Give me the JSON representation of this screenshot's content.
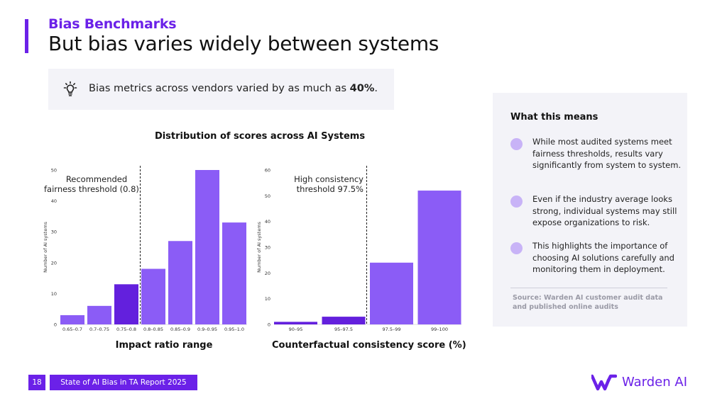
{
  "header": {
    "kicker": "Bias Benchmarks",
    "title": "But bias varies widely between systems"
  },
  "callout": {
    "icon": "lightbulb-icon",
    "text_before": "Bias metrics across vendors varied by as much as ",
    "text_bold": "40%",
    "text_after": "."
  },
  "distribution_title": "Distribution of scores across AI Systems",
  "chart_data": [
    {
      "type": "bar",
      "title": "",
      "categories": [
        "0.65–0.7",
        "0.7–0.75",
        "0.75–0.8",
        "0.8–0.85",
        "0.85–0.9",
        "0.9–0.95",
        "0.95–1.0"
      ],
      "values": [
        3,
        6,
        13,
        18,
        27,
        50,
        33
      ],
      "ylim": [
        0,
        50
      ],
      "yticks": [
        0,
        10,
        20,
        30,
        40,
        50
      ],
      "xlabel": "Impact ratio range",
      "ylabel": "Number of AI systems",
      "threshold_label": [
        "Recommended",
        "fairness threshold (0.8)"
      ],
      "colors": [
        "#8b5cf6",
        "#8b5cf6",
        "#6320dd",
        "#8b5cf6",
        "#8b5cf6",
        "#8b5cf6",
        "#8b5cf6"
      ]
    },
    {
      "type": "bar",
      "title": "",
      "categories": [
        "90–95",
        "95–97.5",
        "97.5–99",
        "99–100"
      ],
      "values": [
        1,
        3,
        24,
        52
      ],
      "ylim": [
        0,
        60
      ],
      "yticks": [
        0,
        10,
        20,
        30,
        40,
        50,
        60
      ],
      "xlabel": "Counterfactual consistency score (%)",
      "ylabel": "Number of AI systems",
      "threshold_label": [
        "High consistency",
        "threshold 97.5%"
      ],
      "colors": [
        "#6320dd",
        "#6320dd",
        "#8b5cf6",
        "#8b5cf6"
      ]
    }
  ],
  "side_panel": {
    "heading": "What this means",
    "points": [
      "While most audited systems meet fairness thresholds, results vary significantly from system to system.",
      "Even if the industry average looks strong, individual systems may still expose organizations to risk.",
      "This highlights the importance of choosing AI solutions carefully and monitoring them in deployment."
    ],
    "source": "Source: Warden AI customer audit data and published online audits"
  },
  "footer": {
    "page_number": "18",
    "report_name": "State of AI Bias in TA Report 2025",
    "logo_text": "Warden AI"
  },
  "colors": {
    "accent": "#6b21e8",
    "bar_light": "#8b5cf6",
    "bar_dark": "#6320dd",
    "panel_bg": "#f3f3f8"
  }
}
